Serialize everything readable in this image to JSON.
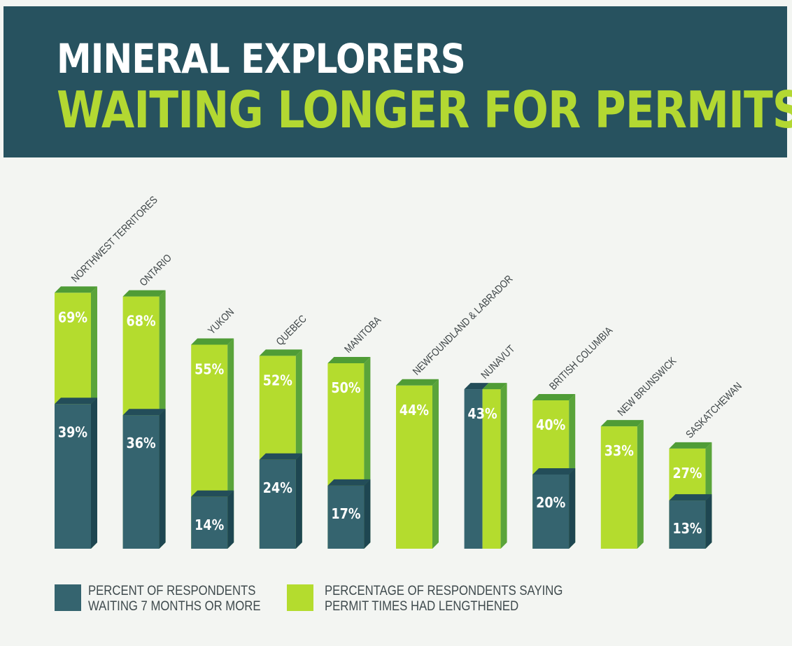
{
  "header": {
    "title_line1": "MINERAL EXPLORERS",
    "title_line2": "WAITING LONGER FOR PERMITS"
  },
  "colors": {
    "dark": "#35646f",
    "dark_side": "#1e4651",
    "dark_top": "#234d59",
    "green": "#b4dc2e",
    "green_side": "#5aa43a",
    "green_top": "#4f9c36",
    "header_bg": "#27525f"
  },
  "chart_data": {
    "type": "bar",
    "title": "MINERAL EXPLORERS WAITING LONGER FOR PERMITS",
    "xlabel": "",
    "ylabel": "",
    "ylim": [
      0,
      100
    ],
    "categories": [
      "NORTHWEST TERRITORES",
      "ONTARIO",
      "YUKON",
      "QUEBEC",
      "MANITOBA",
      "NEWFOUNDLAND & LABRADOR",
      "NUNAVUT",
      "BRITISH COLUMBIA",
      "NEW BRUNSWICK",
      "SASKATCHEWAN"
    ],
    "series": [
      {
        "name": "PERCENT OF RESPONDENTS WAITING 7 MONTHS OR MORE",
        "values": [
          39,
          36,
          14,
          24,
          17,
          null,
          null,
          20,
          null,
          13
        ],
        "labels": [
          "39%",
          "36%",
          "14%",
          "24%",
          "17%",
          "",
          "",
          "20%",
          "",
          "13%"
        ]
      },
      {
        "name": "PERCENTAGE OF RESPONDENTS SAYING PERMIT TIMES HAD LENGTHENED",
        "values": [
          69,
          68,
          55,
          52,
          50,
          44,
          43,
          40,
          33,
          27
        ],
        "labels": [
          "69%",
          "68%",
          "55%",
          "52%",
          "50%",
          "44%",
          "43%",
          "40%",
          "33%",
          "27%"
        ]
      }
    ]
  },
  "legend": {
    "dark_line1": "PERCENT OF RESPONDENTS",
    "dark_line2": "WAITING 7 MONTHS OR MORE",
    "green_line1": "PERCENTAGE OF RESPONDENTS SAYING",
    "green_line2": "PERMIT TIMES HAD LENGTHENED"
  }
}
